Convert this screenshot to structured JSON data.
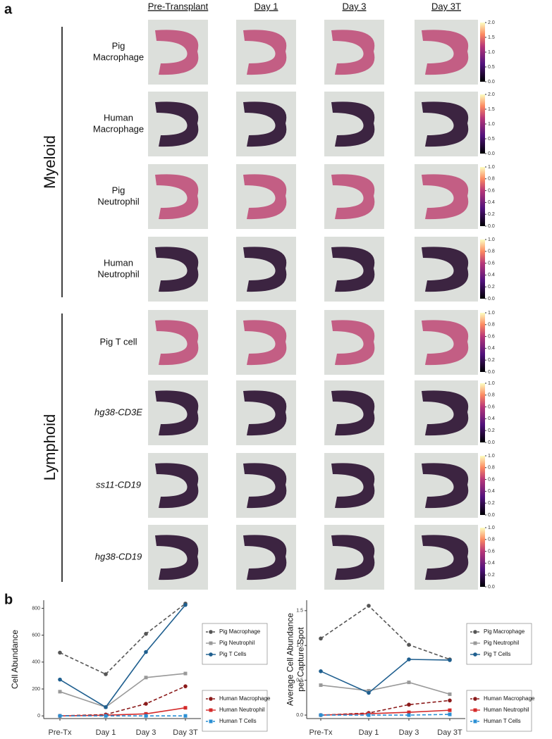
{
  "panel_a": {
    "label": "a",
    "columns": [
      "Pre-Transplant",
      "Day 1",
      "Day 3",
      "Day 3T"
    ],
    "groups": [
      {
        "label": "Myeloid"
      },
      {
        "label": "Lymphoid"
      }
    ],
    "rows": [
      {
        "lines": [
          "Pig",
          "Macrophage"
        ],
        "scale": [
          {
            "value": 0,
            "label": "0.0"
          },
          {
            "value": 0.5,
            "label": "0.5"
          },
          {
            "value": 1,
            "label": "1.0"
          },
          {
            "value": 1.5,
            "label": "1.5"
          },
          {
            "value": 2,
            "label": "2.0"
          }
        ]
      },
      {
        "lines": [
          "Human",
          "Macrophage"
        ],
        "scale": [
          {
            "value": 0,
            "label": "0.0"
          },
          {
            "value": 0.5,
            "label": "0.5"
          },
          {
            "value": 1,
            "label": "1.0"
          },
          {
            "value": 1.5,
            "label": "1.5"
          },
          {
            "value": 2,
            "label": "2.0"
          }
        ]
      },
      {
        "lines": [
          "Pig",
          "Neutrophil"
        ],
        "scale": [
          {
            "value": 0,
            "label": "0.0"
          },
          {
            "value": 0.2,
            "label": "0.2"
          },
          {
            "value": 0.4,
            "label": "0.4"
          },
          {
            "value": 0.6,
            "label": "0.6"
          },
          {
            "value": 0.8,
            "label": "0.8"
          },
          {
            "value": 1,
            "label": "1.0"
          }
        ]
      },
      {
        "lines": [
          "Human",
          "Neutrophil"
        ],
        "scale": [
          {
            "value": 0,
            "label": "0.0"
          },
          {
            "value": 0.2,
            "label": "0.2"
          },
          {
            "value": 0.4,
            "label": "0.4"
          },
          {
            "value": 0.6,
            "label": "0.6"
          },
          {
            "value": 0.8,
            "label": "0.8"
          },
          {
            "value": 1,
            "label": "1.0"
          }
        ]
      },
      {
        "lines": [
          "Pig T cell"
        ],
        "scale": [
          {
            "value": 0,
            "label": "0.0"
          },
          {
            "value": 0.2,
            "label": "0.2"
          },
          {
            "value": 0.4,
            "label": "0.4"
          },
          {
            "value": 0.6,
            "label": "0.6"
          },
          {
            "value": 0.8,
            "label": "0.8"
          },
          {
            "value": 1,
            "label": "1.0"
          }
        ]
      },
      {
        "lines": [
          "hg38-CD3E"
        ],
        "italic": true,
        "scale": [
          {
            "value": 0,
            "label": "0.0"
          },
          {
            "value": 0.2,
            "label": "0.2"
          },
          {
            "value": 0.4,
            "label": "0.4"
          },
          {
            "value": 0.6,
            "label": "0.6"
          },
          {
            "value": 0.8,
            "label": "0.8"
          },
          {
            "value": 1,
            "label": "1.0"
          }
        ]
      },
      {
        "lines": [
          "ss11-CD19"
        ],
        "italic": true,
        "scale": [
          {
            "value": 0,
            "label": "0.0"
          },
          {
            "value": 0.2,
            "label": "0.2"
          },
          {
            "value": 0.4,
            "label": "0.4"
          },
          {
            "value": 0.6,
            "label": "0.6"
          },
          {
            "value": 0.8,
            "label": "0.8"
          },
          {
            "value": 1,
            "label": "1.0"
          }
        ]
      },
      {
        "lines": [
          "hg38-CD19"
        ],
        "italic": true,
        "scale": [
          {
            "value": 0,
            "label": "0.0"
          },
          {
            "value": 0.2,
            "label": "0.2"
          },
          {
            "value": 0.4,
            "label": "0.4"
          },
          {
            "value": 0.6,
            "label": "0.6"
          },
          {
            "value": 0.8,
            "label": "0.8"
          },
          {
            "value": 1,
            "label": "1.0"
          }
        ]
      }
    ]
  },
  "panel_b": {
    "label": "b"
  },
  "chart_data": [
    {
      "type": "line",
      "ylabel": [
        "Cell Abundance"
      ],
      "categories": [
        "Pre-Tx",
        "Day 1",
        "Day 3",
        "Day 3T"
      ],
      "ylim": [
        -20,
        860
      ],
      "yticks": [
        0,
        200,
        400,
        600,
        800
      ],
      "series": [
        {
          "name": "Pig Macrophage",
          "color": "#555555",
          "dashed": true,
          "marker": "circle",
          "values": [
            470,
            310,
            610,
            835
          ]
        },
        {
          "name": "Pig Neutrophil",
          "color": "#999999",
          "dashed": false,
          "marker": "square",
          "values": [
            180,
            65,
            285,
            315
          ]
        },
        {
          "name": "Pig T Cells",
          "color": "#1f5f8f",
          "dashed": false,
          "marker": "circle",
          "values": [
            270,
            65,
            475,
            825
          ]
        },
        {
          "name": "Human Macrophage",
          "color": "#8b1a1a",
          "dashed": true,
          "marker": "circle",
          "values": [
            0,
            10,
            90,
            220
          ]
        },
        {
          "name": "Human Neutrophil",
          "color": "#d42a2a",
          "dashed": false,
          "marker": "square",
          "values": [
            0,
            5,
            15,
            60
          ]
        },
        {
          "name": "Human T Cells",
          "color": "#2a8fd4",
          "dashed": true,
          "marker": "square",
          "values": [
            0,
            0,
            0,
            0
          ]
        }
      ]
    },
    {
      "type": "line",
      "ylabel": [
        "Average Cell Abundance",
        "per Capture Spot"
      ],
      "categories": [
        "Pre-Tx",
        "Day 1",
        "Day 3",
        "Day 3T"
      ],
      "ylim": [
        -0.05,
        1.65
      ],
      "yticks": [
        {
          "value": 0,
          "label": "0.0"
        },
        {
          "value": 0.5,
          "label": "0.5"
        },
        {
          "value": 1,
          "label": "1.0"
        },
        {
          "value": 1.5,
          "label": "1.5"
        }
      ],
      "series": [
        {
          "name": "Pig Macrophage",
          "color": "#555555",
          "dashed": true,
          "marker": "circle",
          "values": [
            1.1,
            1.57,
            1.01,
            0.8
          ]
        },
        {
          "name": "Pig Neutrophil",
          "color": "#999999",
          "dashed": false,
          "marker": "square",
          "values": [
            0.43,
            0.35,
            0.47,
            0.3
          ]
        },
        {
          "name": "Pig T Cells",
          "color": "#1f5f8f",
          "dashed": false,
          "marker": "circle",
          "values": [
            0.63,
            0.32,
            0.8,
            0.79
          ]
        },
        {
          "name": "Human Macrophage",
          "color": "#8b1a1a",
          "dashed": true,
          "marker": "circle",
          "values": [
            0,
            0.03,
            0.15,
            0.21
          ]
        },
        {
          "name": "Human Neutrophil",
          "color": "#d42a2a",
          "dashed": false,
          "marker": "square",
          "values": [
            0,
            0.02,
            0.04,
            0.07
          ]
        },
        {
          "name": "Human T Cells",
          "color": "#2a8fd4",
          "dashed": true,
          "marker": "square",
          "values": [
            0,
            0,
            0,
            0.01
          ]
        }
      ]
    }
  ]
}
